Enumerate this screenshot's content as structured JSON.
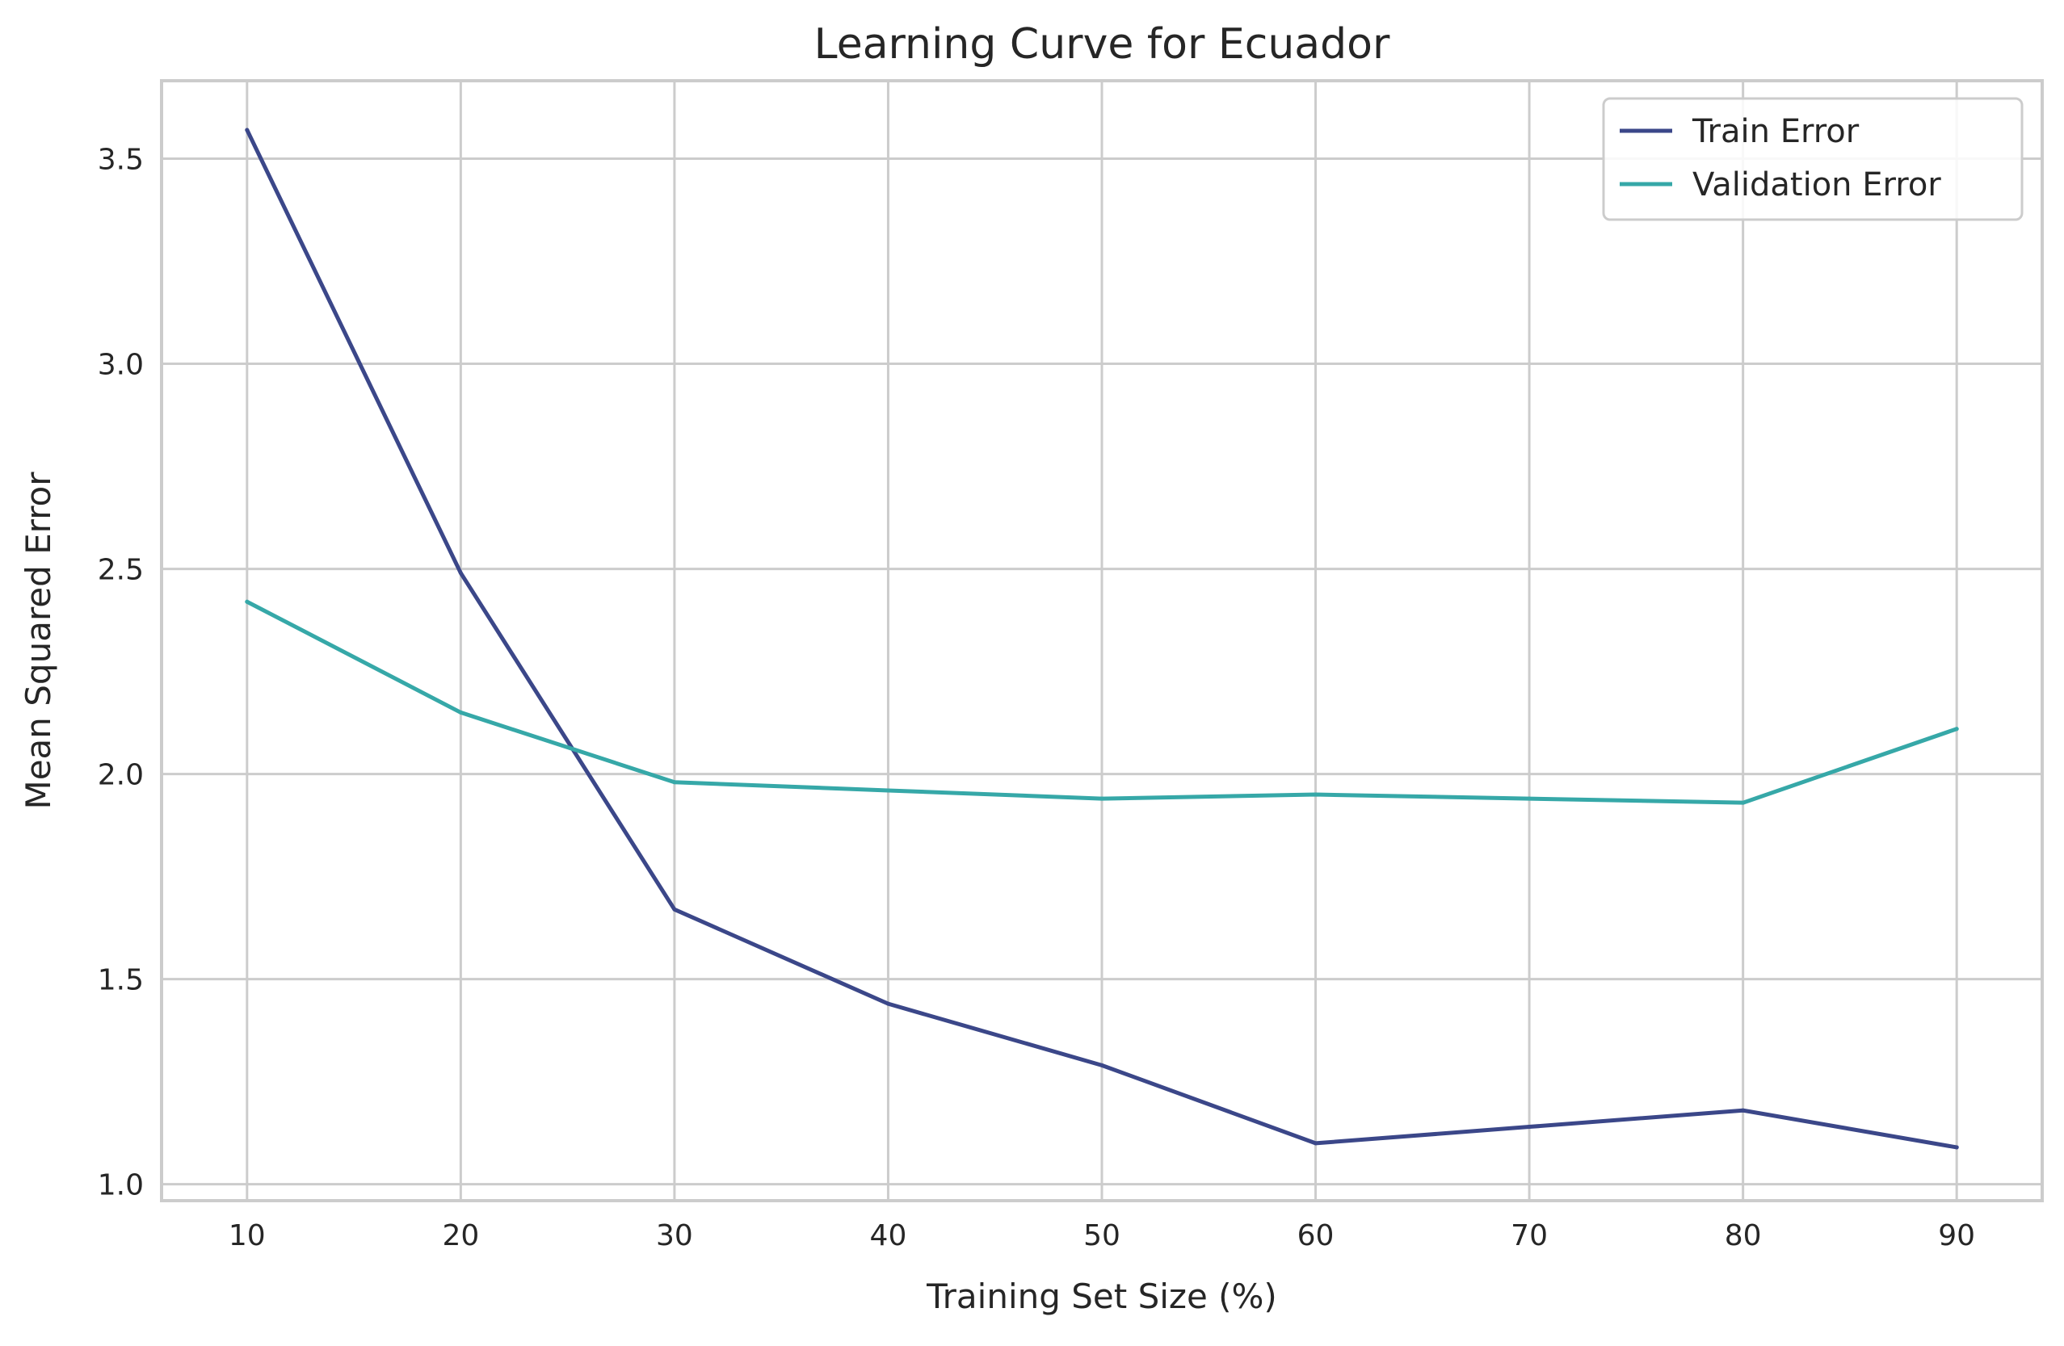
{
  "chart_data": {
    "type": "line",
    "title": "Learning Curve for Ecuador",
    "xlabel": "Training Set Size (%)",
    "ylabel": "Mean Squared Error",
    "x": [
      10,
      20,
      30,
      40,
      50,
      60,
      70,
      80,
      90
    ],
    "xticks": [
      "10",
      "20",
      "30",
      "40",
      "50",
      "60",
      "70",
      "80",
      "90"
    ],
    "yticks": [
      "1.0",
      "1.5",
      "2.0",
      "2.5",
      "3.0",
      "3.5"
    ],
    "xlim": [
      6,
      94
    ],
    "ylim": [
      0.96,
      3.69
    ],
    "grid": true,
    "legend_position": "top-right",
    "series": [
      {
        "name": "Train Error",
        "color": "#3b4789",
        "values": [
          3.57,
          2.49,
          1.67,
          1.44,
          1.29,
          1.1,
          1.14,
          1.18,
          1.09
        ]
      },
      {
        "name": "Validation Error",
        "color": "#36a8a8",
        "values": [
          2.42,
          2.15,
          1.98,
          1.96,
          1.94,
          1.95,
          1.94,
          1.93,
          2.11
        ]
      }
    ]
  }
}
